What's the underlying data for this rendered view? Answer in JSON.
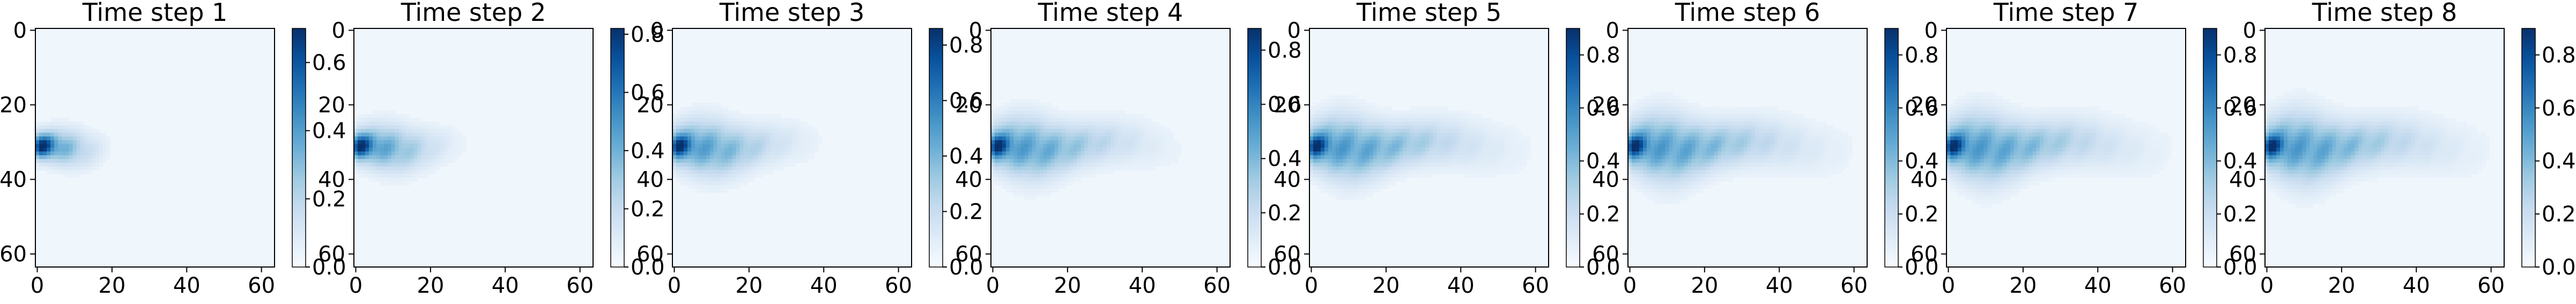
{
  "figure": {
    "background": "#ffffff",
    "colormap": "Blues",
    "colormap_stops": [
      "#f7fbff",
      "#deebf7",
      "#c6dbef",
      "#9ecae1",
      "#6baed6",
      "#4292c6",
      "#2171b5",
      "#08519c",
      "#08306b"
    ]
  },
  "chart_data": [
    {
      "type": "heatmap",
      "title": "Time step 1",
      "grid_size": [
        64,
        64
      ],
      "x_ticks": [
        0,
        20,
        40,
        60
      ],
      "y_ticks": [
        0,
        20,
        40,
        60
      ],
      "xlim": [
        0,
        63
      ],
      "ylim": [
        63,
        0
      ],
      "colorbar": {
        "ticks": [
          "0.0",
          "0.2",
          "0.4",
          "0.6"
        ],
        "range": [
          0,
          0.7
        ]
      },
      "plume": {
        "source": [
          1,
          31
        ],
        "peak": 0.7,
        "length": 21,
        "width": 3.3,
        "spread": 2.0
      }
    },
    {
      "type": "heatmap",
      "title": "Time step 2",
      "grid_size": [
        64,
        64
      ],
      "x_ticks": [
        0,
        20,
        40,
        60
      ],
      "y_ticks": [
        0,
        20,
        40,
        60
      ],
      "xlim": [
        0,
        63
      ],
      "ylim": [
        63,
        0
      ],
      "colorbar": {
        "ticks": [
          "0.0",
          "0.2",
          "0.4",
          "0.6",
          "0.8"
        ],
        "range": [
          0,
          0.82
        ]
      },
      "plume": {
        "source": [
          1,
          31
        ],
        "peak": 0.82,
        "length": 30,
        "width": 3.8,
        "spread": 3.0
      }
    },
    {
      "type": "heatmap",
      "title": "Time step 3",
      "grid_size": [
        64,
        64
      ],
      "x_ticks": [
        0,
        20,
        40,
        60
      ],
      "y_ticks": [
        0,
        20,
        40,
        60
      ],
      "xlim": [
        0,
        63
      ],
      "ylim": [
        63,
        0
      ],
      "colorbar": {
        "ticks": [
          "0.0",
          "0.2",
          "0.4",
          "0.6",
          "0.8"
        ],
        "range": [
          0,
          0.86
        ]
      },
      "plume": {
        "source": [
          1,
          31
        ],
        "peak": 0.86,
        "length": 40,
        "width": 4.2,
        "spread": 4.5
      }
    },
    {
      "type": "heatmap",
      "title": "Time step 4",
      "grid_size": [
        64,
        64
      ],
      "x_ticks": [
        0,
        20,
        40,
        60
      ],
      "y_ticks": [
        0,
        20,
        40,
        60
      ],
      "xlim": [
        0,
        63
      ],
      "ylim": [
        63,
        0
      ],
      "colorbar": {
        "ticks": [
          "0.0",
          "0.2",
          "0.4",
          "0.6",
          "0.8"
        ],
        "range": [
          0,
          0.88
        ]
      },
      "plume": {
        "source": [
          1,
          31
        ],
        "peak": 0.88,
        "length": 51,
        "width": 4.4,
        "spread": 5.2
      }
    },
    {
      "type": "heatmap",
      "title": "Time step 5",
      "grid_size": [
        64,
        64
      ],
      "x_ticks": [
        0,
        20,
        40,
        60
      ],
      "y_ticks": [
        0,
        20,
        40,
        60
      ],
      "xlim": [
        0,
        63
      ],
      "ylim": [
        63,
        0
      ],
      "colorbar": {
        "ticks": [
          "0.0",
          "0.2",
          "0.4",
          "0.6",
          "0.8"
        ],
        "range": [
          0,
          0.9
        ]
      },
      "plume": {
        "source": [
          1,
          31
        ],
        "peak": 0.9,
        "length": 60,
        "width": 4.6,
        "spread": 5.6
      }
    },
    {
      "type": "heatmap",
      "title": "Time step 6",
      "grid_size": [
        64,
        64
      ],
      "x_ticks": [
        0,
        20,
        40,
        60
      ],
      "y_ticks": [
        0,
        20,
        40,
        60
      ],
      "xlim": [
        0,
        63
      ],
      "ylim": [
        63,
        0
      ],
      "colorbar": {
        "ticks": [
          "0.0",
          "0.2",
          "0.4",
          "0.6",
          "0.8"
        ],
        "range": [
          0,
          0.9
        ]
      },
      "plume": {
        "source": [
          1,
          31
        ],
        "peak": 0.9,
        "length": 61,
        "width": 4.8,
        "spread": 6.0
      }
    },
    {
      "type": "heatmap",
      "title": "Time step 7",
      "grid_size": [
        64,
        64
      ],
      "x_ticks": [
        0,
        20,
        40,
        60
      ],
      "y_ticks": [
        0,
        20,
        40,
        60
      ],
      "xlim": [
        0,
        63
      ],
      "ylim": [
        63,
        0
      ],
      "colorbar": {
        "ticks": [
          "0.0",
          "0.2",
          "0.4",
          "0.6",
          "0.8"
        ],
        "range": [
          0,
          0.9
        ]
      },
      "plume": {
        "source": [
          1,
          31
        ],
        "peak": 0.9,
        "length": 61,
        "width": 4.9,
        "spread": 6.2
      }
    },
    {
      "type": "heatmap",
      "title": "Time step 8",
      "grid_size": [
        64,
        64
      ],
      "x_ticks": [
        0,
        20,
        40,
        60
      ],
      "y_ticks": [
        0,
        20,
        40,
        60
      ],
      "xlim": [
        0,
        63
      ],
      "ylim": [
        63,
        0
      ],
      "colorbar": {
        "ticks": [
          "0.0",
          "0.2",
          "0.4",
          "0.6",
          "0.8"
        ],
        "range": [
          0,
          0.9
        ]
      },
      "plume": {
        "source": [
          1,
          31
        ],
        "peak": 0.9,
        "length": 61,
        "width": 5.0,
        "spread": 6.4
      }
    }
  ]
}
